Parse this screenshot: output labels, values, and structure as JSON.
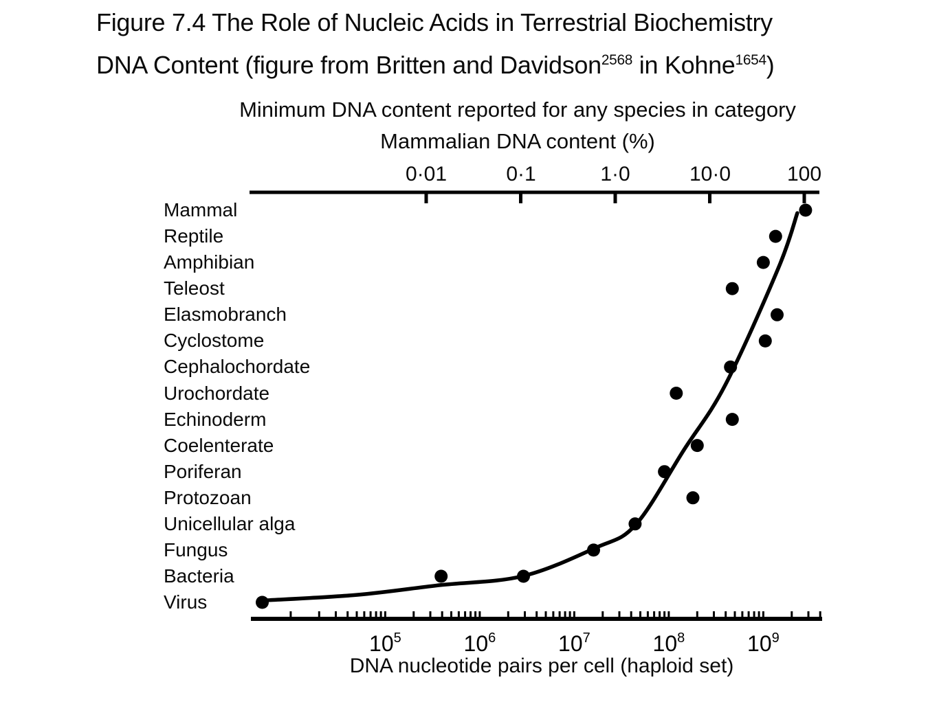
{
  "title": {
    "line1": "Figure 7.4 The Role of Nucleic Acids in Terrestrial Biochemistry",
    "line2_prefix": "DNA Content (figure from Britten and Davidson",
    "line2_sup1": "2568",
    "line2_mid": " in Kohne",
    "line2_sup2": "1654",
    "line2_suffix": ")"
  },
  "chart_data": {
    "type": "scatter",
    "title": "Minimum DNA content reported for any species in category",
    "grid": "off",
    "legend": "none",
    "top_axis": {
      "label": "Mammalian DNA content (%)",
      "scale": "log",
      "tick_labels": [
        "0·01",
        "0·1",
        "1·0",
        "10·0",
        "100"
      ],
      "tick_values": [
        0.01,
        0.1,
        1.0,
        10.0,
        100
      ]
    },
    "bottom_axis": {
      "label": "DNA nucleotide pairs per cell (haploid set)",
      "scale": "log",
      "tick_base": "10",
      "tick_exponents": [
        5,
        6,
        7,
        8,
        9
      ],
      "range_exponents": [
        3.58,
        9.62
      ]
    },
    "categories": [
      "Mammal",
      "Reptile",
      "Amphibian",
      "Teleost",
      "Elasmobranch",
      "Cyclostome",
      "Cephalochordate",
      "Urochordate",
      "Echinoderm",
      "Coelenterate",
      "Poriferan",
      "Protozoan",
      "Unicellular alga",
      "Fungus",
      "Bacteria",
      "Virus"
    ],
    "points": [
      {
        "category": "Mammal",
        "value": 2800000000.0
      },
      {
        "category": "Reptile",
        "value": 1350000000.0
      },
      {
        "category": "Amphibian",
        "value": 1000000000.0
      },
      {
        "category": "Teleost",
        "value": 470000000.0
      },
      {
        "category": "Elasmobranch",
        "value": 1400000000.0
      },
      {
        "category": "Cyclostome",
        "value": 1050000000.0
      },
      {
        "category": "Cephalochordate",
        "value": 450000000.0
      },
      {
        "category": "Urochordate",
        "value": 120000000.0
      },
      {
        "category": "Echinoderm",
        "value": 470000000.0
      },
      {
        "category": "Coelenterate",
        "value": 200000000.0
      },
      {
        "category": "Poriferan",
        "value": 90000000.0
      },
      {
        "category": "Protozoan",
        "value": 180000000.0
      },
      {
        "category": "Unicellular alga",
        "value": 44000000.0
      },
      {
        "category": "Fungus",
        "value": 16000000.0
      },
      {
        "category": "Bacteria",
        "value": 390000.0
      },
      {
        "category": "Bacteria",
        "value": 2900000.0
      },
      {
        "category": "Virus",
        "value": 5000.0
      }
    ],
    "trend_curve": {
      "description": "smooth curve through the minimum-DNA-content points",
      "points": [
        {
          "log10_value": 3.75,
          "category_position": 14.92
        },
        {
          "log10_value": 4.71,
          "category_position": 14.71
        },
        {
          "log10_value": 5.58,
          "category_position": 14.34
        },
        {
          "log10_value": 6.45,
          "category_position": 14.0
        },
        {
          "log10_value": 7.22,
          "category_position": 12.92
        },
        {
          "log10_value": 7.65,
          "category_position": 12.03
        },
        {
          "log10_value": 8.16,
          "category_position": 9.17
        },
        {
          "log10_value": 8.6,
          "category_position": 6.67
        },
        {
          "log10_value": 9.16,
          "category_position": 2.21
        },
        {
          "log10_value": 9.36,
          "category_position": 0.11
        }
      ]
    }
  },
  "colors": {
    "ink": "#000000",
    "background": "#ffffff"
  }
}
